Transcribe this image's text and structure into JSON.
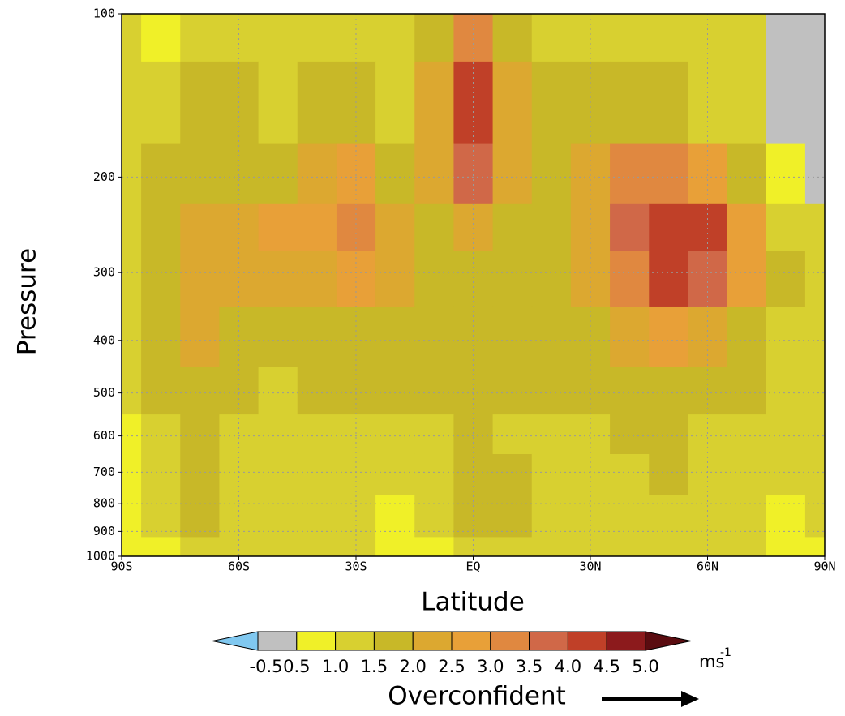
{
  "chart_data": {
    "type": "contour",
    "x": [
      -90,
      -80,
      -70,
      -60,
      -50,
      -40,
      -30,
      -20,
      -10,
      0,
      10,
      20,
      30,
      40,
      50,
      60,
      70,
      80,
      90
    ],
    "y": [
      100,
      150,
      200,
      250,
      300,
      400,
      500,
      600,
      700,
      850,
      1000
    ],
    "z": [
      [
        1.3,
        0.8,
        1.3,
        1.3,
        1.3,
        1.3,
        1.3,
        1.3,
        1.8,
        3.3,
        1.8,
        1.3,
        1.3,
        1.3,
        1.3,
        1.3,
        1.3,
        0,
        0
      ],
      [
        1.3,
        1.3,
        1.8,
        1.8,
        1.3,
        1.8,
        1.8,
        1.3,
        2.3,
        4.3,
        2.3,
        1.8,
        1.8,
        1.8,
        1.8,
        1.3,
        1.3,
        0,
        0
      ],
      [
        1.3,
        1.8,
        1.8,
        1.8,
        1.8,
        2.3,
        2.8,
        1.8,
        2.3,
        3.8,
        2.3,
        1.8,
        2.3,
        3.3,
        3.3,
        2.8,
        1.8,
        0.8,
        0
      ],
      [
        1.3,
        1.8,
        2.3,
        2.3,
        2.8,
        2.8,
        3.3,
        2.3,
        1.8,
        2.3,
        1.8,
        1.8,
        2.3,
        3.8,
        4.3,
        4.3,
        2.8,
        1.3,
        1.3
      ],
      [
        1.3,
        1.8,
        2.3,
        2.3,
        2.3,
        2.3,
        2.8,
        2.3,
        1.8,
        1.8,
        1.8,
        1.8,
        2.3,
        3.3,
        4.3,
        3.8,
        2.8,
        1.8,
        1.3
      ],
      [
        1.3,
        1.8,
        2.3,
        1.8,
        1.8,
        1.8,
        1.8,
        1.8,
        1.8,
        1.8,
        1.8,
        1.8,
        1.8,
        2.3,
        2.8,
        2.3,
        1.8,
        1.3,
        1.3
      ],
      [
        1.3,
        1.8,
        1.8,
        1.8,
        1.3,
        1.8,
        1.8,
        1.8,
        1.8,
        1.8,
        1.8,
        1.8,
        1.8,
        1.8,
        1.8,
        1.8,
        1.8,
        1.3,
        1.3
      ],
      [
        0.8,
        1.3,
        1.8,
        1.3,
        1.3,
        1.3,
        1.3,
        1.3,
        1.3,
        1.8,
        1.3,
        1.3,
        1.3,
        1.8,
        1.8,
        1.3,
        1.3,
        1.3,
        1.3
      ],
      [
        0.8,
        1.3,
        1.8,
        1.3,
        1.3,
        1.3,
        1.3,
        1.3,
        1.3,
        1.8,
        1.8,
        1.3,
        1.3,
        1.3,
        1.8,
        1.3,
        1.3,
        1.3,
        1.3
      ],
      [
        0.8,
        1.3,
        1.8,
        1.3,
        1.3,
        1.3,
        1.3,
        0.8,
        1.3,
        1.8,
        1.8,
        1.3,
        1.3,
        1.3,
        1.3,
        1.3,
        1.3,
        0.8,
        1.3
      ],
      [
        0.8,
        0.8,
        1.3,
        1.3,
        1.3,
        1.3,
        1.3,
        0.8,
        0.8,
        1.3,
        1.3,
        1.3,
        1.3,
        1.3,
        1.3,
        1.3,
        1.3,
        0.8,
        0.8
      ]
    ],
    "xlim": [
      -90,
      90
    ],
    "xticks": [
      {
        "value": -90,
        "label": "90S"
      },
      {
        "value": -60,
        "label": "60S"
      },
      {
        "value": -30,
        "label": "30S"
      },
      {
        "value": 0,
        "label": "EQ"
      },
      {
        "value": 30,
        "label": "30N"
      },
      {
        "value": 60,
        "label": "60N"
      },
      {
        "value": 90,
        "label": "90N"
      }
    ],
    "ylim": [
      100,
      1000
    ],
    "yticks": [
      100,
      200,
      300,
      400,
      500,
      600,
      700,
      800,
      900,
      1000
    ],
    "y_log": true,
    "y_inverted": true,
    "grid": true,
    "xlabel": "Latitude",
    "ylabel": "Pressure",
    "colorbar": {
      "levels": [
        -0.5,
        0.5,
        {
          "value": 1,
          "label": "1.0"
        },
        1.5,
        {
          "value": 2,
          "label": "2.0"
        },
        2.5,
        {
          "value": 3,
          "label": "3.0"
        },
        3.5,
        {
          "value": 4,
          "label": "4.0"
        },
        4.5,
        {
          "value": 5,
          "label": "5.0"
        }
      ],
      "colors": [
        "#80c8f0",
        "#c0c0c0",
        "#f0f028",
        "#d8d030",
        "#c8b828",
        "#dca830",
        "#e8a038",
        "#e08840",
        "#d06848",
        "#c04028",
        "#8c1a1c",
        "#5a0c10"
      ],
      "unit": "ms",
      "unit_superscript": "-1"
    },
    "annotation": "Overconfident"
  }
}
